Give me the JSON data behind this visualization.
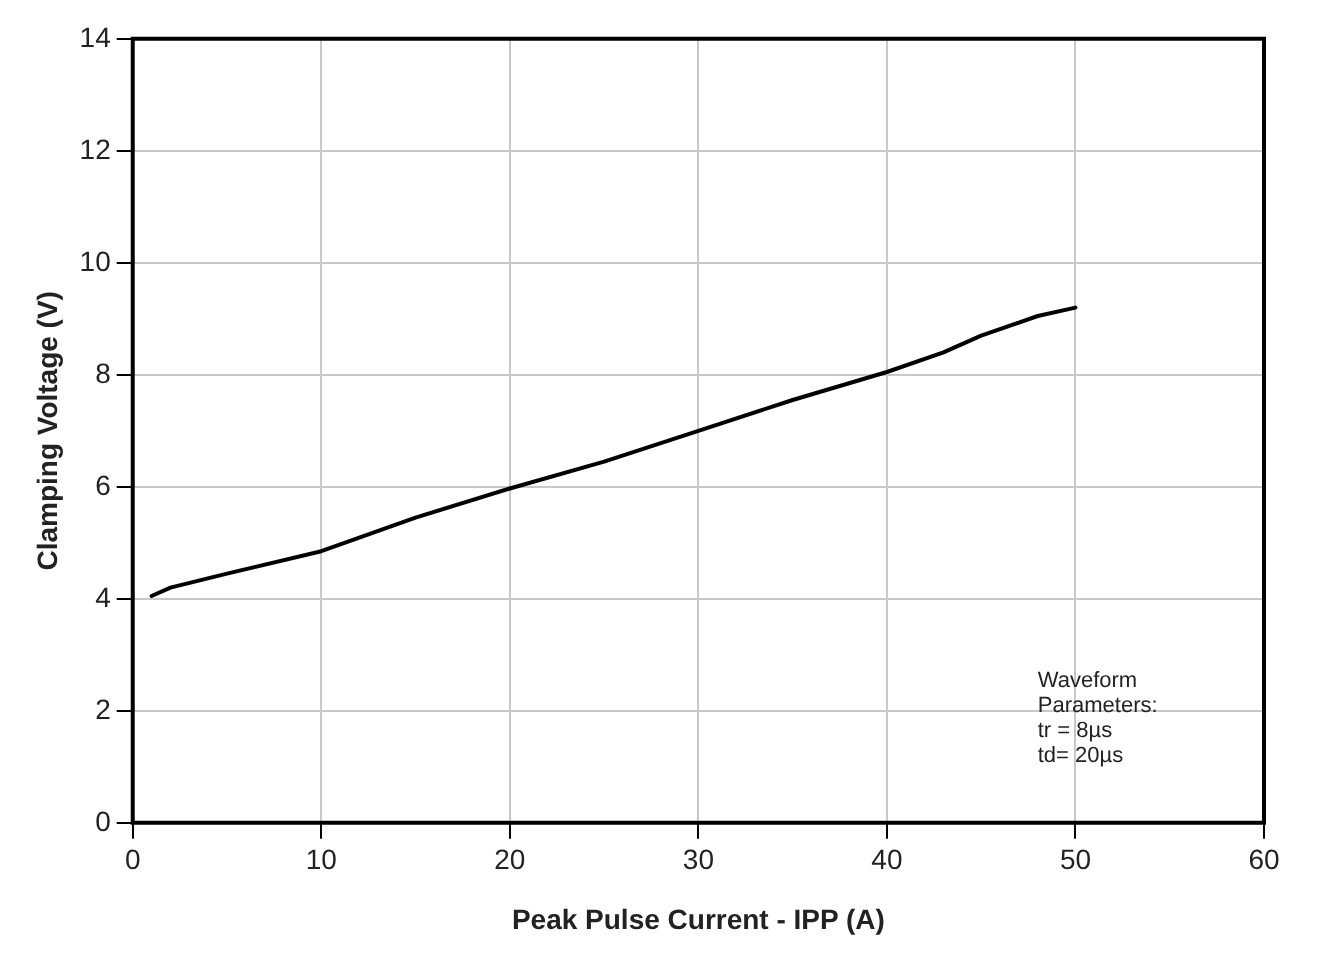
{
  "chart_data": {
    "type": "line",
    "xlabel": "Peak Pulse Current - IPP (A)",
    "ylabel": "Clamping Voltage (V)",
    "x": [
      1,
      2,
      5,
      10,
      15,
      20,
      25,
      30,
      35,
      40,
      43,
      45,
      48,
      50
    ],
    "series": [
      {
        "color": "#000000",
        "values": [
          4.05,
          4.2,
          4.45,
          4.85,
          5.45,
          5.97,
          6.45,
          7.0,
          7.55,
          8.05,
          8.4,
          8.7,
          9.05,
          9.2
        ]
      }
    ],
    "xlim": [
      0,
      60
    ],
    "xticks": [
      0,
      10,
      20,
      30,
      40,
      50,
      60
    ],
    "ylim": [
      0,
      14
    ],
    "yticks": [
      0,
      2,
      4,
      6,
      8,
      10,
      12,
      14
    ],
    "grid": true,
    "legend": false,
    "marker": "none",
    "line_style": "solid",
    "annotations": [
      "Waveform\nParameters:\ntr = 8µs\ntd= 20µs"
    ]
  }
}
